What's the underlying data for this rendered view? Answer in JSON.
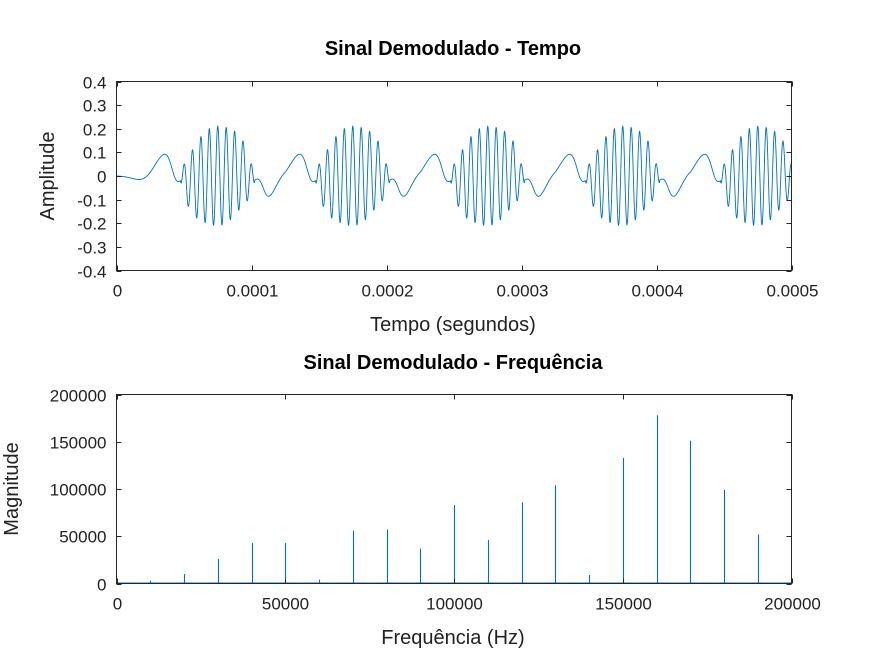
{
  "colors": {
    "series": "#0072bd",
    "axis": "#262626"
  },
  "chart_data": [
    {
      "type": "line",
      "title": "Sinal Demodulado - Tempo",
      "xlabel": "Tempo (segundos)",
      "ylabel": "Amplitude",
      "xlim": [
        0,
        0.0005
      ],
      "ylim": [
        -0.4,
        0.4
      ],
      "xticks": [
        0,
        0.0001,
        0.0002,
        0.0003,
        0.0004,
        0.0005
      ],
      "xtick_labels": [
        "0",
        "0.0001",
        "0.0002",
        "0.0003",
        "0.0004",
        "0.0005"
      ],
      "yticks": [
        -0.4,
        -0.3,
        -0.2,
        -0.1,
        0,
        0.1,
        0.2,
        0.3,
        0.4
      ],
      "ytick_labels": [
        "-0.4",
        "-0.3",
        "-0.2",
        "-0.1",
        "0",
        "0.1",
        "0.2",
        "0.3",
        "0.4"
      ],
      "grid": false,
      "signal": {
        "burst_centers": [
          7.5e-05,
          0.000175,
          0.000275,
          0.000375,
          0.000475
        ],
        "burst_period": 0.0001,
        "burst_peak_amplitude": 0.21,
        "carrier_frequency": 160000
      }
    },
    {
      "type": "bar",
      "title": "Sinal Demodulado - Frequência",
      "xlabel": "Frequência (Hz)",
      "ylabel": "Magnitude",
      "xlim": [
        0,
        200000
      ],
      "ylim": [
        0,
        200000
      ],
      "xticks": [
        0,
        50000,
        100000,
        150000,
        200000
      ],
      "xtick_labels": [
        "0",
        "50000",
        "100000",
        "150000",
        "200000"
      ],
      "yticks": [
        0,
        50000,
        100000,
        150000,
        200000
      ],
      "ytick_labels": [
        "0",
        "50000",
        "100000",
        "150000",
        "200000"
      ],
      "grid": false,
      "x": [
        10000,
        20000,
        30000,
        40000,
        50000,
        60000,
        70000,
        80000,
        90000,
        100000,
        110000,
        120000,
        130000,
        140000,
        150000,
        160000,
        170000,
        180000,
        190000
      ],
      "values": [
        3000,
        10000,
        26000,
        43000,
        43000,
        4000,
        56000,
        57000,
        37000,
        83000,
        46000,
        86000,
        104000,
        9000,
        133000,
        178000,
        151000,
        99000,
        52000
      ]
    }
  ]
}
